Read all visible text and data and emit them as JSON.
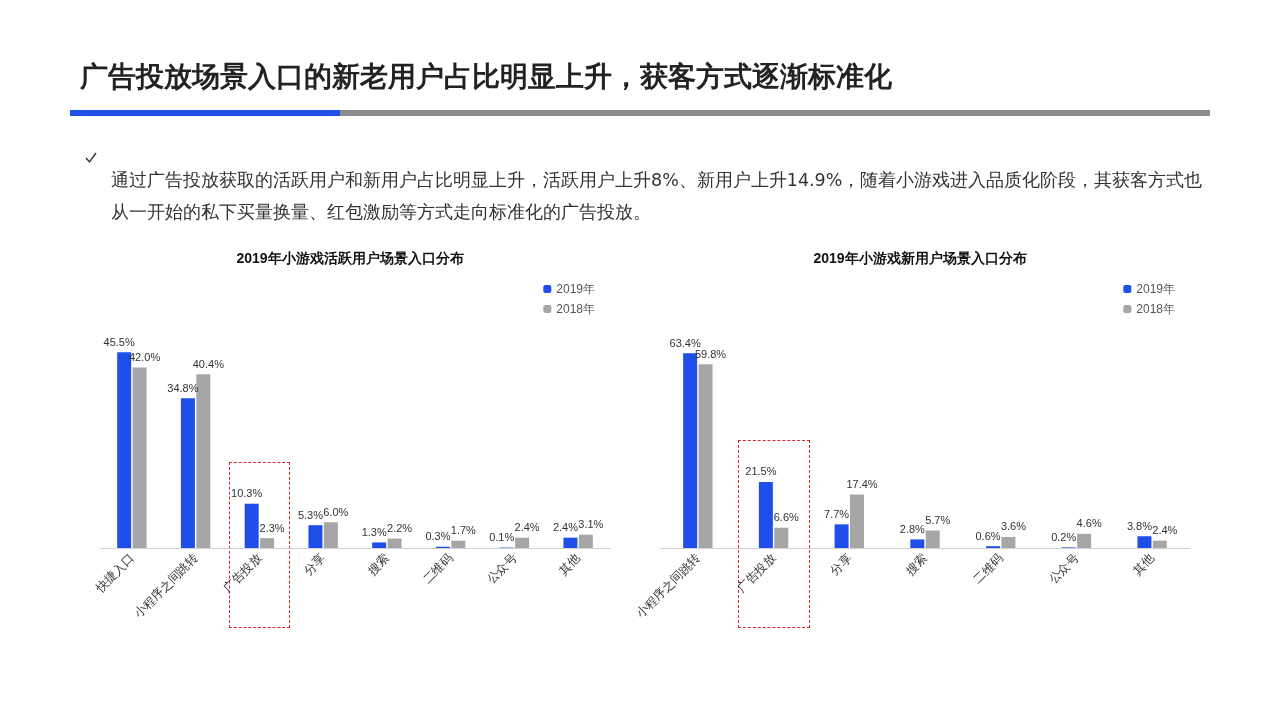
{
  "chart_data": [
    {
      "type": "bar",
      "title": "2019年小游戏活跃用户场景入口分布",
      "annotations": [
        "广告投放场景入口的新老用户占比明显上升，获客方式逐渐标准化",
        "通过广告投放获取的活跃用户和新用户占比明显上升，活跃用户上升8%、新用户上升14.9%，随着小游戏进入品质化阶段，其获客方式也从一开始的私下买量换量、红包激励等方式走向标准化的广告投放。"
      ],
      "categories": [
        "快捷入口",
        "小程序之间跳转",
        "广告投放",
        "分享",
        "搜索",
        "二维码",
        "公众号",
        "其他"
      ],
      "series": [
        {
          "name": "2019年",
          "color": "#1f4fe8",
          "values": [
            45.5,
            34.8,
            10.3,
            5.3,
            1.3,
            0.3,
            0.1,
            2.4
          ],
          "value_labels": [
            "45.5%",
            "34.8%",
            "10.3%",
            "5.3%",
            "1.3%",
            "0.3%",
            "0.1%",
            "2.4%"
          ]
        },
        {
          "name": "2018年",
          "color": "#a6a6a6",
          "values": [
            42.0,
            40.4,
            2.3,
            6.0,
            2.2,
            1.7,
            2.4,
            3.1
          ],
          "value_labels": [
            "42.0%",
            "40.4%",
            "2.3%",
            "6.0%",
            "2.2%",
            "1.7%",
            "2.4%",
            "3.1%"
          ]
        }
      ],
      "legend": "top right",
      "tick_labels": "x"
    },
    {
      "type": "bar",
      "title": "2019年小游戏新用户场景入口分布",
      "categories": [
        "小程序之间跳转",
        "广告投放",
        "分享",
        "搜索",
        "二维码",
        "公众号",
        "其他"
      ],
      "series": [
        {
          "name": "2019年",
          "color": "#1f4fe8",
          "values": [
            63.4,
            21.5,
            7.7,
            2.8,
            0.6,
            0.2,
            3.8
          ],
          "value_labels": [
            "63.4%",
            "21.5%",
            "7.7%",
            "2.8%",
            "0.6%",
            "0.2%",
            "3.8%"
          ]
        },
        {
          "name": "2018年",
          "color": "#a6a6a6",
          "values": [
            59.8,
            6.6,
            17.4,
            5.7,
            3.6,
            4.6,
            2.4
          ],
          "value_labels": [
            "59.8%",
            "6.6%",
            "17.4%",
            "5.7%",
            "3.6%",
            "4.6%",
            "2.4%"
          ]
        }
      ],
      "legend": "top right",
      "tick_labels": "x"
    }
  ]
}
